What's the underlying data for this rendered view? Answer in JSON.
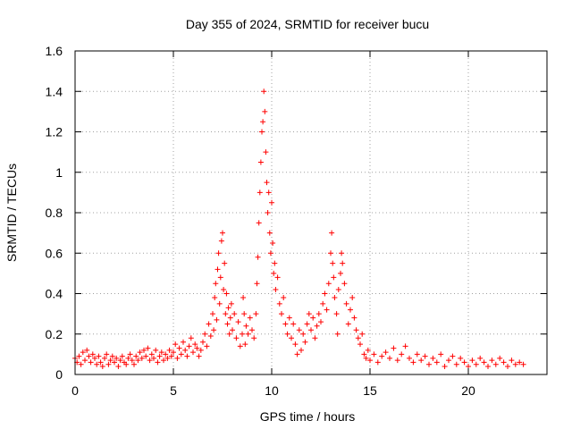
{
  "chart_data": {
    "type": "scatter",
    "title": "Day 355 of 2024, SRMTID for receiver bucu",
    "xlabel": "GPS time / hours",
    "ylabel": "SRMTID / TECUs",
    "xlim": [
      0,
      24
    ],
    "ylim": [
      0,
      1.6
    ],
    "x_ticks": [
      0,
      5,
      10,
      15,
      20
    ],
    "x_tick_labels": [
      "0",
      "5",
      "10",
      "15",
      "20"
    ],
    "y_ticks": [
      0,
      0.2,
      0.4,
      0.6,
      0.8,
      1.0,
      1.2,
      1.4,
      1.6
    ],
    "y_tick_labels": [
      "0",
      "0.2",
      "0.4",
      "0.6",
      "0.8",
      "1",
      "1.2",
      "1.4",
      "1.6"
    ],
    "grid": true,
    "marker": "+",
    "marker_color": "#ff0000",
    "series": [
      {
        "name": "SRMTID",
        "points": [
          [
            0.0,
            0.08
          ],
          [
            0.1,
            0.06
          ],
          [
            0.2,
            0.09
          ],
          [
            0.3,
            0.05
          ],
          [
            0.4,
            0.11
          ],
          [
            0.5,
            0.07
          ],
          [
            0.6,
            0.12
          ],
          [
            0.7,
            0.09
          ],
          [
            0.8,
            0.06
          ],
          [
            0.9,
            0.1
          ],
          [
            1.0,
            0.08
          ],
          [
            1.1,
            0.05
          ],
          [
            1.2,
            0.09
          ],
          [
            1.3,
            0.06
          ],
          [
            1.4,
            0.04
          ],
          [
            1.5,
            0.08
          ],
          [
            1.6,
            0.1
          ],
          [
            1.7,
            0.05
          ],
          [
            1.8,
            0.07
          ],
          [
            1.9,
            0.09
          ],
          [
            2.0,
            0.06
          ],
          [
            2.1,
            0.08
          ],
          [
            2.2,
            0.04
          ],
          [
            2.3,
            0.07
          ],
          [
            2.4,
            0.09
          ],
          [
            2.5,
            0.06
          ],
          [
            2.6,
            0.05
          ],
          [
            2.7,
            0.08
          ],
          [
            2.8,
            0.1
          ],
          [
            2.9,
            0.07
          ],
          [
            3.0,
            0.05
          ],
          [
            3.1,
            0.09
          ],
          [
            3.2,
            0.07
          ],
          [
            3.3,
            0.11
          ],
          [
            3.4,
            0.08
          ],
          [
            3.5,
            0.12
          ],
          [
            3.6,
            0.09
          ],
          [
            3.7,
            0.13
          ],
          [
            3.8,
            0.07
          ],
          [
            3.9,
            0.1
          ],
          [
            4.0,
            0.08
          ],
          [
            4.1,
            0.12
          ],
          [
            4.2,
            0.06
          ],
          [
            4.3,
            0.09
          ],
          [
            4.4,
            0.11
          ],
          [
            4.5,
            0.07
          ],
          [
            4.6,
            0.1
          ],
          [
            4.7,
            0.08
          ],
          [
            4.8,
            0.12
          ],
          [
            4.9,
            0.09
          ],
          [
            5.0,
            0.11
          ],
          [
            5.1,
            0.15
          ],
          [
            5.2,
            0.08
          ],
          [
            5.3,
            0.13
          ],
          [
            5.4,
            0.1
          ],
          [
            5.5,
            0.16
          ],
          [
            5.6,
            0.12
          ],
          [
            5.7,
            0.09
          ],
          [
            5.8,
            0.14
          ],
          [
            5.9,
            0.18
          ],
          [
            6.0,
            0.11
          ],
          [
            6.1,
            0.15
          ],
          [
            6.2,
            0.13
          ],
          [
            6.3,
            0.09
          ],
          [
            6.4,
            0.12
          ],
          [
            6.5,
            0.16
          ],
          [
            6.6,
            0.2
          ],
          [
            6.7,
            0.14
          ],
          [
            6.8,
            0.25
          ],
          [
            6.9,
            0.19
          ],
          [
            7.0,
            0.3
          ],
          [
            7.05,
            0.22
          ],
          [
            7.1,
            0.38
          ],
          [
            7.15,
            0.45
          ],
          [
            7.2,
            0.27
          ],
          [
            7.25,
            0.52
          ],
          [
            7.3,
            0.6
          ],
          [
            7.35,
            0.35
          ],
          [
            7.4,
            0.48
          ],
          [
            7.45,
            0.66
          ],
          [
            7.5,
            0.7
          ],
          [
            7.55,
            0.42
          ],
          [
            7.6,
            0.55
          ],
          [
            7.65,
            0.3
          ],
          [
            7.7,
            0.4
          ],
          [
            7.75,
            0.25
          ],
          [
            7.8,
            0.33
          ],
          [
            7.85,
            0.2
          ],
          [
            7.9,
            0.28
          ],
          [
            7.95,
            0.35
          ],
          [
            8.0,
            0.22
          ],
          [
            8.1,
            0.3
          ],
          [
            8.2,
            0.18
          ],
          [
            8.3,
            0.26
          ],
          [
            8.4,
            0.14
          ],
          [
            8.5,
            0.2
          ],
          [
            8.55,
            0.38
          ],
          [
            8.6,
            0.3
          ],
          [
            8.65,
            0.15
          ],
          [
            8.7,
            0.24
          ],
          [
            8.8,
            0.2
          ],
          [
            8.9,
            0.28
          ],
          [
            9.0,
            0.22
          ],
          [
            9.1,
            0.18
          ],
          [
            9.2,
            0.3
          ],
          [
            9.25,
            0.45
          ],
          [
            9.3,
            0.58
          ],
          [
            9.35,
            0.75
          ],
          [
            9.4,
            0.9
          ],
          [
            9.45,
            1.05
          ],
          [
            9.5,
            1.2
          ],
          [
            9.55,
            1.25
          ],
          [
            9.6,
            1.4
          ],
          [
            9.65,
            1.3
          ],
          [
            9.7,
            1.1
          ],
          [
            9.75,
            0.95
          ],
          [
            9.8,
            0.8
          ],
          [
            9.85,
            0.9
          ],
          [
            9.9,
            0.7
          ],
          [
            9.95,
            0.6
          ],
          [
            10.0,
            0.85
          ],
          [
            10.05,
            0.65
          ],
          [
            10.1,
            0.5
          ],
          [
            10.15,
            0.55
          ],
          [
            10.2,
            0.42
          ],
          [
            10.3,
            0.48
          ],
          [
            10.4,
            0.35
          ],
          [
            10.5,
            0.3
          ],
          [
            10.6,
            0.38
          ],
          [
            10.7,
            0.25
          ],
          [
            10.8,
            0.2
          ],
          [
            10.9,
            0.28
          ],
          [
            11.0,
            0.18
          ],
          [
            11.1,
            0.25
          ],
          [
            11.2,
            0.15
          ],
          [
            11.3,
            0.1
          ],
          [
            11.4,
            0.22
          ],
          [
            11.5,
            0.12
          ],
          [
            11.6,
            0.2
          ],
          [
            11.7,
            0.16
          ],
          [
            11.8,
            0.25
          ],
          [
            11.9,
            0.3
          ],
          [
            12.0,
            0.22
          ],
          [
            12.1,
            0.28
          ],
          [
            12.2,
            0.18
          ],
          [
            12.3,
            0.24
          ],
          [
            12.4,
            0.3
          ],
          [
            12.5,
            0.26
          ],
          [
            12.6,
            0.35
          ],
          [
            12.7,
            0.4
          ],
          [
            12.8,
            0.32
          ],
          [
            12.9,
            0.45
          ],
          [
            13.0,
            0.6
          ],
          [
            13.05,
            0.7
          ],
          [
            13.1,
            0.55
          ],
          [
            13.15,
            0.48
          ],
          [
            13.2,
            0.38
          ],
          [
            13.3,
            0.3
          ],
          [
            13.35,
            0.2
          ],
          [
            13.4,
            0.42
          ],
          [
            13.5,
            0.5
          ],
          [
            13.55,
            0.6
          ],
          [
            13.6,
            0.55
          ],
          [
            13.7,
            0.45
          ],
          [
            13.8,
            0.35
          ],
          [
            13.9,
            0.25
          ],
          [
            14.0,
            0.32
          ],
          [
            14.1,
            0.38
          ],
          [
            14.2,
            0.28
          ],
          [
            14.3,
            0.22
          ],
          [
            14.4,
            0.18
          ],
          [
            14.5,
            0.15
          ],
          [
            14.6,
            0.2
          ],
          [
            14.7,
            0.1
          ],
          [
            14.8,
            0.08
          ],
          [
            14.9,
            0.12
          ],
          [
            15.0,
            0.07
          ],
          [
            15.2,
            0.1
          ],
          [
            15.4,
            0.06
          ],
          [
            15.6,
            0.09
          ],
          [
            15.8,
            0.11
          ],
          [
            16.0,
            0.08
          ],
          [
            16.2,
            0.13
          ],
          [
            16.4,
            0.07
          ],
          [
            16.6,
            0.1
          ],
          [
            16.8,
            0.14
          ],
          [
            17.0,
            0.08
          ],
          [
            17.2,
            0.06
          ],
          [
            17.4,
            0.1
          ],
          [
            17.6,
            0.07
          ],
          [
            17.8,
            0.09
          ],
          [
            18.0,
            0.05
          ],
          [
            18.2,
            0.08
          ],
          [
            18.4,
            0.06
          ],
          [
            18.6,
            0.1
          ],
          [
            18.8,
            0.04
          ],
          [
            19.0,
            0.07
          ],
          [
            19.2,
            0.09
          ],
          [
            19.4,
            0.05
          ],
          [
            19.6,
            0.08
          ],
          [
            19.8,
            0.06
          ],
          [
            20.0,
            0.04
          ],
          [
            20.2,
            0.07
          ],
          [
            20.4,
            0.05
          ],
          [
            20.6,
            0.08
          ],
          [
            20.8,
            0.06
          ],
          [
            21.0,
            0.04
          ],
          [
            21.2,
            0.07
          ],
          [
            21.4,
            0.05
          ],
          [
            21.6,
            0.08
          ],
          [
            21.8,
            0.06
          ],
          [
            22.0,
            0.04
          ],
          [
            22.2,
            0.07
          ],
          [
            22.4,
            0.05
          ],
          [
            22.6,
            0.06
          ],
          [
            22.8,
            0.05
          ]
        ]
      }
    ]
  }
}
